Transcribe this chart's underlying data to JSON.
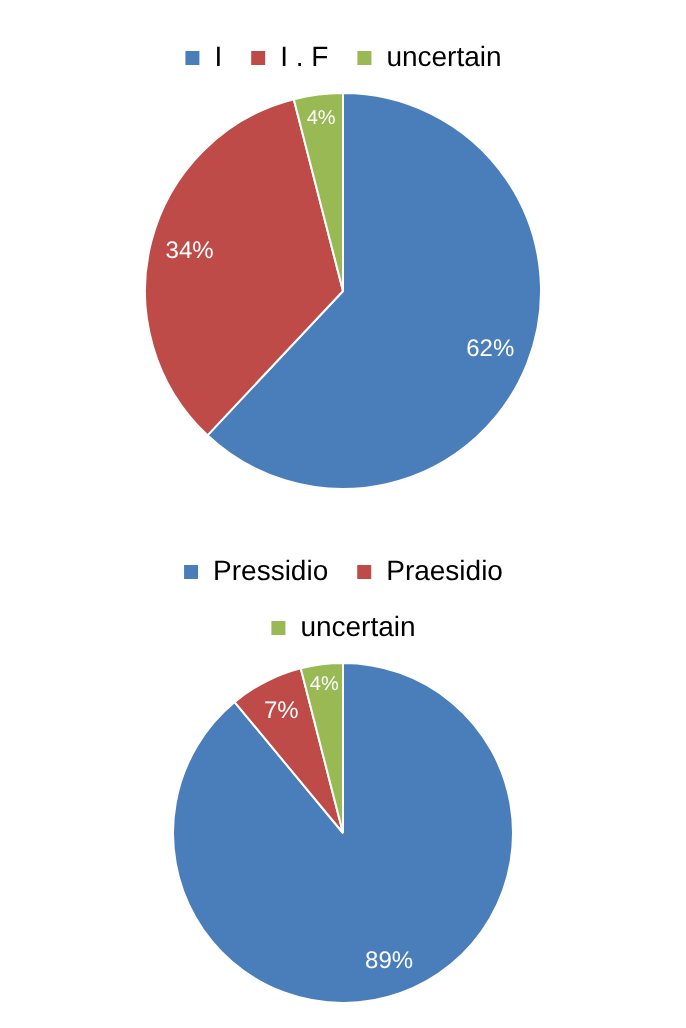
{
  "chart_data": [
    {
      "type": "pie",
      "categories": [
        "I",
        "I . F",
        "uncertain"
      ],
      "values": [
        62,
        34,
        4
      ],
      "colors": [
        "#4a7ebb",
        "#be4b48",
        "#98b954"
      ],
      "value_labels": [
        "62%",
        "34%",
        "4%"
      ],
      "legend": "top"
    },
    {
      "type": "pie",
      "categories": [
        "Pressidio",
        "Praesidio",
        "uncertain"
      ],
      "values": [
        89,
        7,
        4
      ],
      "colors": [
        "#4a7ebb",
        "#be4b48",
        "#98b954"
      ],
      "value_labels": [
        "89%",
        "7%",
        "4%"
      ],
      "legend": "top"
    }
  ]
}
